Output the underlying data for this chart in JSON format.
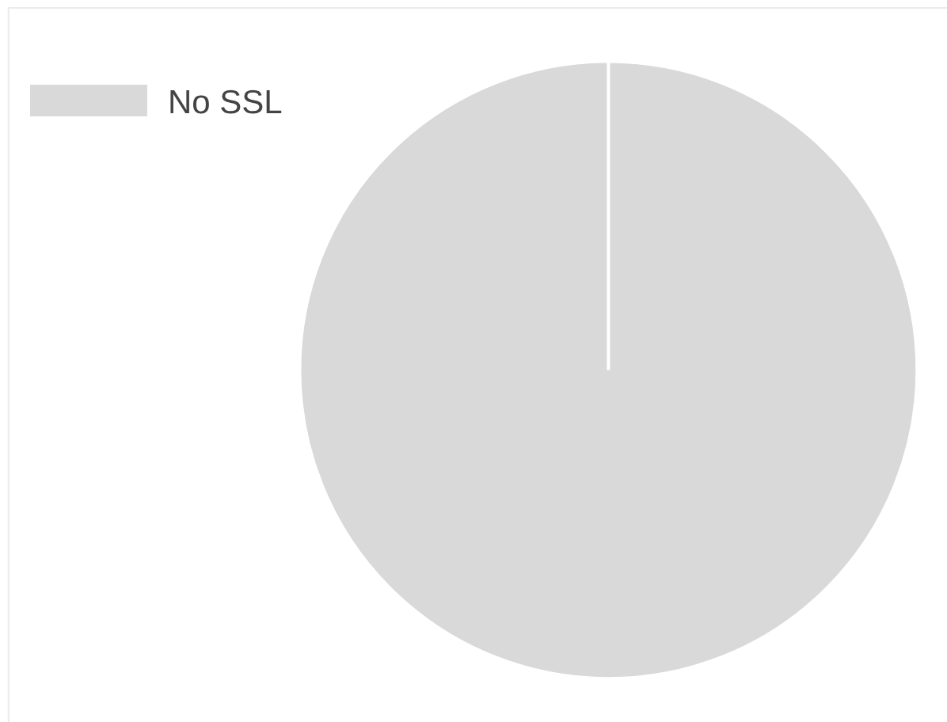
{
  "chart_data": {
    "type": "pie",
    "categories": [
      "No SSL"
    ],
    "values": [
      100
    ],
    "colors": [
      "#d9d9d9"
    ],
    "legend": "top left"
  }
}
